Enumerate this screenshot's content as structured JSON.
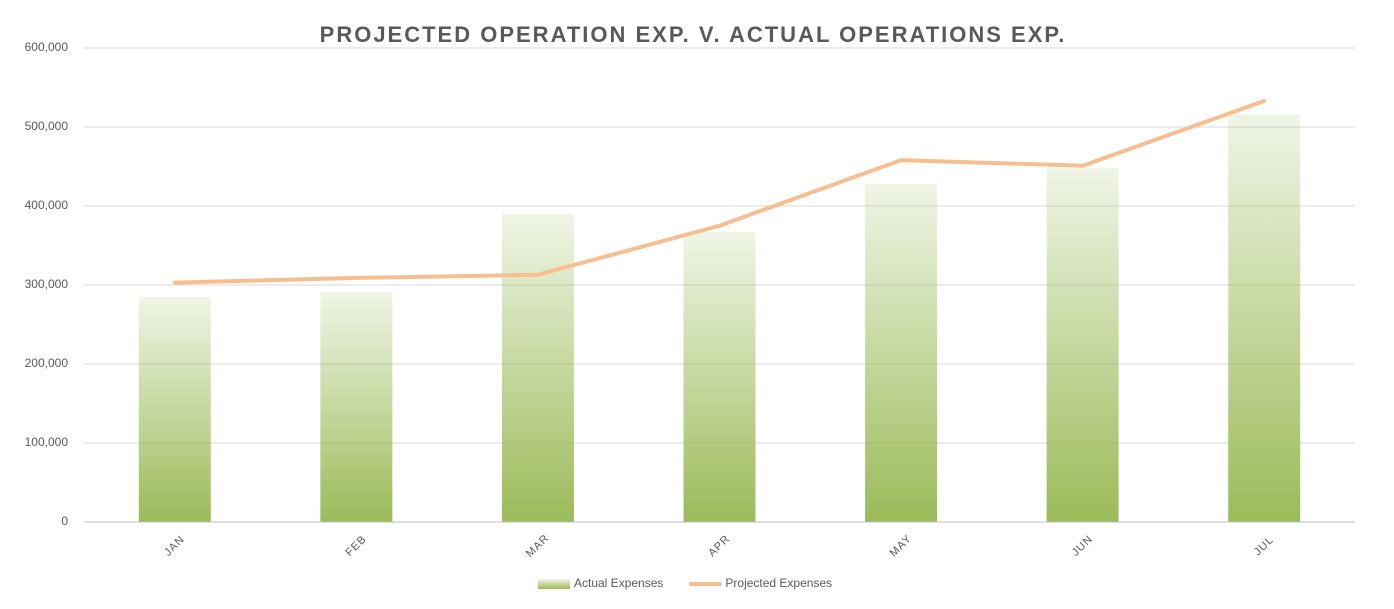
{
  "chart_data": {
    "type": "bar",
    "title": "PROJECTED OPERATION EXP. V. ACTUAL OPERATIONS EXP.",
    "categories": [
      "JAN",
      "FEB",
      "MAR",
      "APR",
      "MAY",
      "JUN",
      "JUL"
    ],
    "series": [
      {
        "name": "Actual Expenses",
        "type": "bar",
        "color": "#9bbb59",
        "values": [
          285000,
          291000,
          390000,
          367000,
          428000,
          448000,
          516000
        ]
      },
      {
        "name": "Projected Expenses",
        "type": "line",
        "color": "#f7bf8f",
        "values": [
          303000,
          309000,
          313000,
          375000,
          458000,
          451000,
          533000
        ]
      }
    ],
    "ylim": [
      0,
      600000
    ],
    "yticks": [
      0,
      {
        "value": 100000,
        "label": "100,000"
      },
      {
        "value": 200000,
        "label": "200,000"
      },
      {
        "value": 300000,
        "label": "300,000"
      },
      {
        "value": 400000,
        "label": "400,000"
      },
      {
        "value": 500000,
        "label": "500,000"
      },
      {
        "value": 600000,
        "label": "600,000"
      }
    ],
    "grid": true,
    "legend": "bottom"
  }
}
